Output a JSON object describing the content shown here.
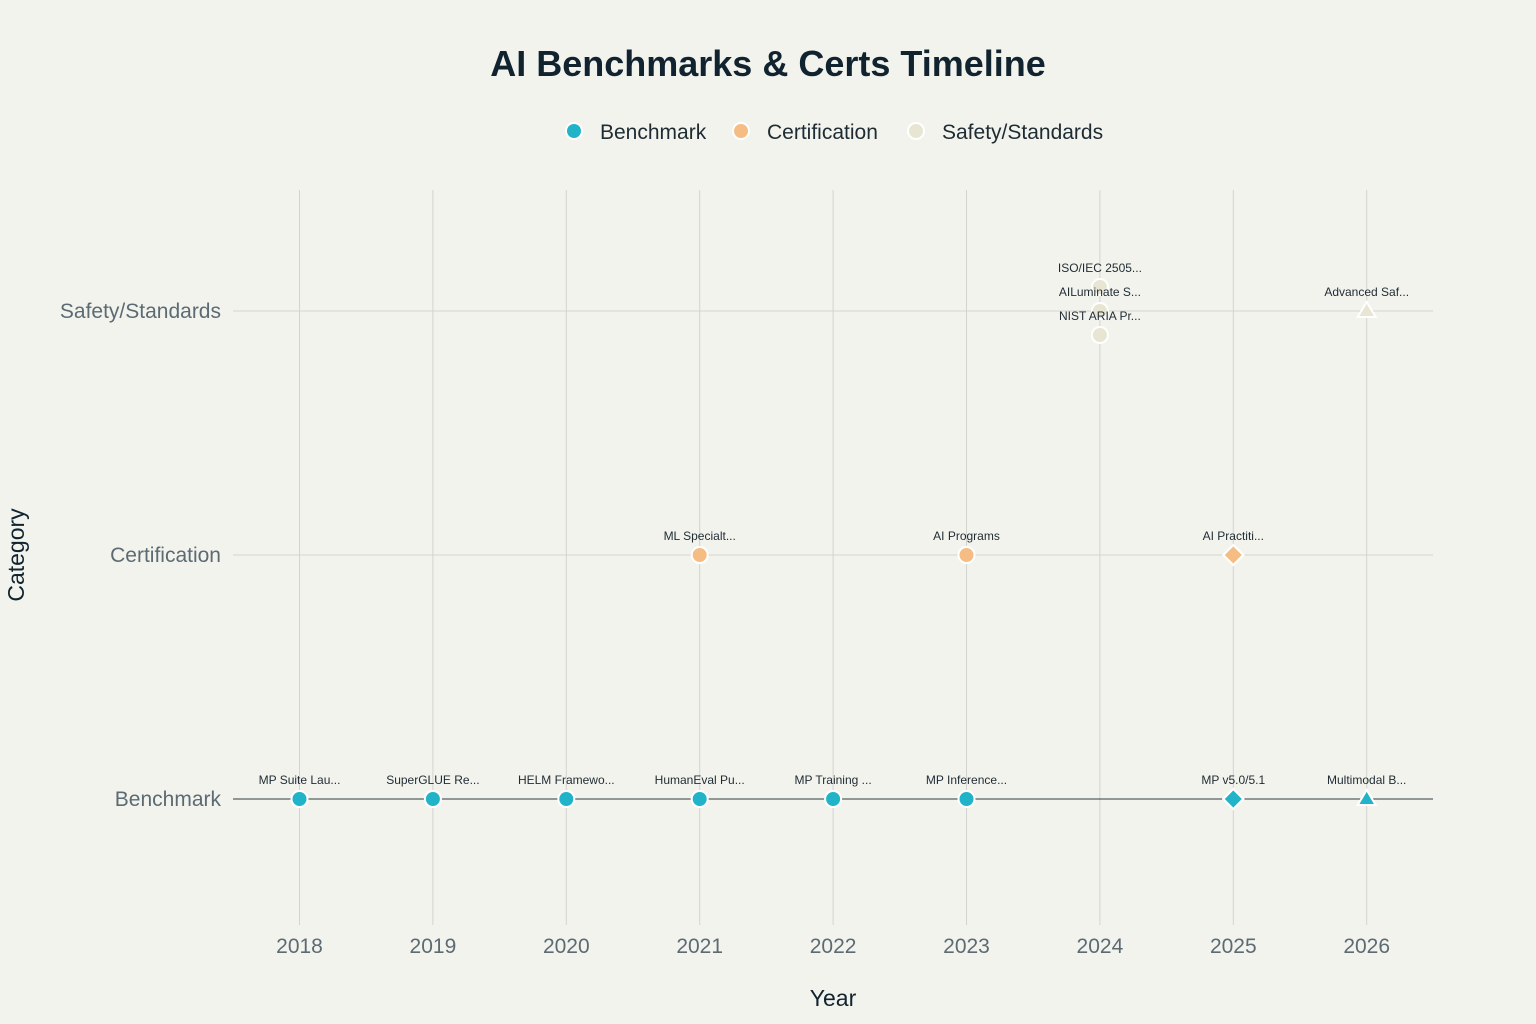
{
  "chart_data": {
    "type": "scatter",
    "title": "AI Benchmarks & Certs Timeline",
    "xlabel": "Year",
    "ylabel": "Category",
    "x_ticks": [
      2018,
      2019,
      2020,
      2021,
      2022,
      2023,
      2024,
      2025,
      2026
    ],
    "xlim": [
      2017.5,
      2026.5
    ],
    "categories": [
      "Benchmark",
      "Certification",
      "Safety/Standards"
    ],
    "grid": true,
    "legend_position": "top-center",
    "legend": [
      {
        "name": "Benchmark",
        "color": "#21b3c8"
      },
      {
        "name": "Certification",
        "color": "#f5bc84"
      },
      {
        "name": "Safety/Standards",
        "color": "#e8e6d2"
      }
    ],
    "points": [
      {
        "x": 2018,
        "category": "Benchmark",
        "label": "MP Suite Lau...",
        "symbol": "circle",
        "offset": 0
      },
      {
        "x": 2019,
        "category": "Benchmark",
        "label": "SuperGLUE Re...",
        "symbol": "circle",
        "offset": 0
      },
      {
        "x": 2020,
        "category": "Benchmark",
        "label": "HELM Framewo...",
        "symbol": "circle",
        "offset": 0
      },
      {
        "x": 2021,
        "category": "Benchmark",
        "label": "HumanEval Pu...",
        "symbol": "circle",
        "offset": 0
      },
      {
        "x": 2022,
        "category": "Benchmark",
        "label": "MP Training ...",
        "symbol": "circle",
        "offset": 0
      },
      {
        "x": 2023,
        "category": "Benchmark",
        "label": "MP Inference...",
        "symbol": "circle",
        "offset": 0
      },
      {
        "x": 2025,
        "category": "Benchmark",
        "label": "MP v5.0/5.1",
        "symbol": "diamond",
        "offset": 0
      },
      {
        "x": 2026,
        "category": "Benchmark",
        "label": "Multimodal B...",
        "symbol": "triangle",
        "offset": 0
      },
      {
        "x": 2021,
        "category": "Certification",
        "label": "ML Specialt...",
        "symbol": "circle",
        "offset": 0
      },
      {
        "x": 2023,
        "category": "Certification",
        "label": "AI Programs",
        "symbol": "circle",
        "offset": 0
      },
      {
        "x": 2025,
        "category": "Certification",
        "label": "AI Practiti...",
        "symbol": "diamond",
        "offset": 0
      },
      {
        "x": 2024,
        "category": "Safety/Standards",
        "label": "ISO/IEC 2505...",
        "symbol": "circle",
        "offset": 1
      },
      {
        "x": 2024,
        "category": "Safety/Standards",
        "label": "AILuminate S...",
        "symbol": "circle",
        "offset": 0
      },
      {
        "x": 2024,
        "category": "Safety/Standards",
        "label": "NIST ARIA Pr...",
        "symbol": "circle",
        "offset": -1
      },
      {
        "x": 2026,
        "category": "Safety/Standards",
        "label": "Advanced Saf...",
        "symbol": "triangle",
        "offset": 0
      }
    ]
  }
}
